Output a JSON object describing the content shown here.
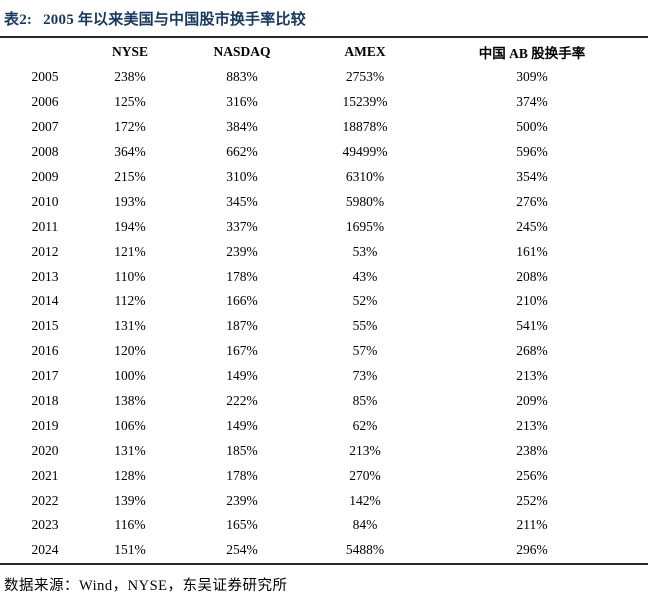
{
  "title": {
    "tag": "表2:",
    "text": "2005 年以来美国与中国股市换手率比较"
  },
  "table": {
    "columns": [
      "",
      "NYSE",
      "NASDAQ",
      "AMEX",
      "中国 AB 股换手率"
    ],
    "rows": [
      {
        "year": "2005",
        "values": [
          "238%",
          "883%",
          "2753%",
          "309%"
        ]
      },
      {
        "year": "2006",
        "values": [
          "125%",
          "316%",
          "15239%",
          "374%"
        ]
      },
      {
        "year": "2007",
        "values": [
          "172%",
          "384%",
          "18878%",
          "500%"
        ]
      },
      {
        "year": "2008",
        "values": [
          "364%",
          "662%",
          "49499%",
          "596%"
        ]
      },
      {
        "year": "2009",
        "values": [
          "215%",
          "310%",
          "6310%",
          "354%"
        ]
      },
      {
        "year": "2010",
        "values": [
          "193%",
          "345%",
          "5980%",
          "276%"
        ]
      },
      {
        "year": "2011",
        "values": [
          "194%",
          "337%",
          "1695%",
          "245%"
        ]
      },
      {
        "year": "2012",
        "values": [
          "121%",
          "239%",
          "53%",
          "161%"
        ]
      },
      {
        "year": "2013",
        "values": [
          "110%",
          "178%",
          "43%",
          "208%"
        ]
      },
      {
        "year": "2014",
        "values": [
          "112%",
          "166%",
          "52%",
          "210%"
        ]
      },
      {
        "year": "2015",
        "values": [
          "131%",
          "187%",
          "55%",
          "541%"
        ]
      },
      {
        "year": "2016",
        "values": [
          "120%",
          "167%",
          "57%",
          "268%"
        ]
      },
      {
        "year": "2017",
        "values": [
          "100%",
          "149%",
          "73%",
          "213%"
        ]
      },
      {
        "year": "2018",
        "values": [
          "138%",
          "222%",
          "85%",
          "209%"
        ]
      },
      {
        "year": "2019",
        "values": [
          "106%",
          "149%",
          "62%",
          "213%"
        ]
      },
      {
        "year": "2020",
        "values": [
          "131%",
          "185%",
          "213%",
          "238%"
        ]
      },
      {
        "year": "2021",
        "values": [
          "128%",
          "178%",
          "270%",
          "256%"
        ]
      },
      {
        "year": "2022",
        "values": [
          "139%",
          "239%",
          "142%",
          "252%"
        ]
      },
      {
        "year": "2023",
        "values": [
          "116%",
          "165%",
          "84%",
          "211%"
        ]
      },
      {
        "year": "2024",
        "values": [
          "151%",
          "254%",
          "5488%",
          "296%"
        ]
      }
    ]
  },
  "footer": {
    "label": "数据来源：",
    "text": "Wind，NYSE，东吴证券研究所"
  },
  "colors": {
    "title_text": "#17375E",
    "rule": "#242832",
    "body_text": "#000000",
    "background": "#ffffff"
  }
}
